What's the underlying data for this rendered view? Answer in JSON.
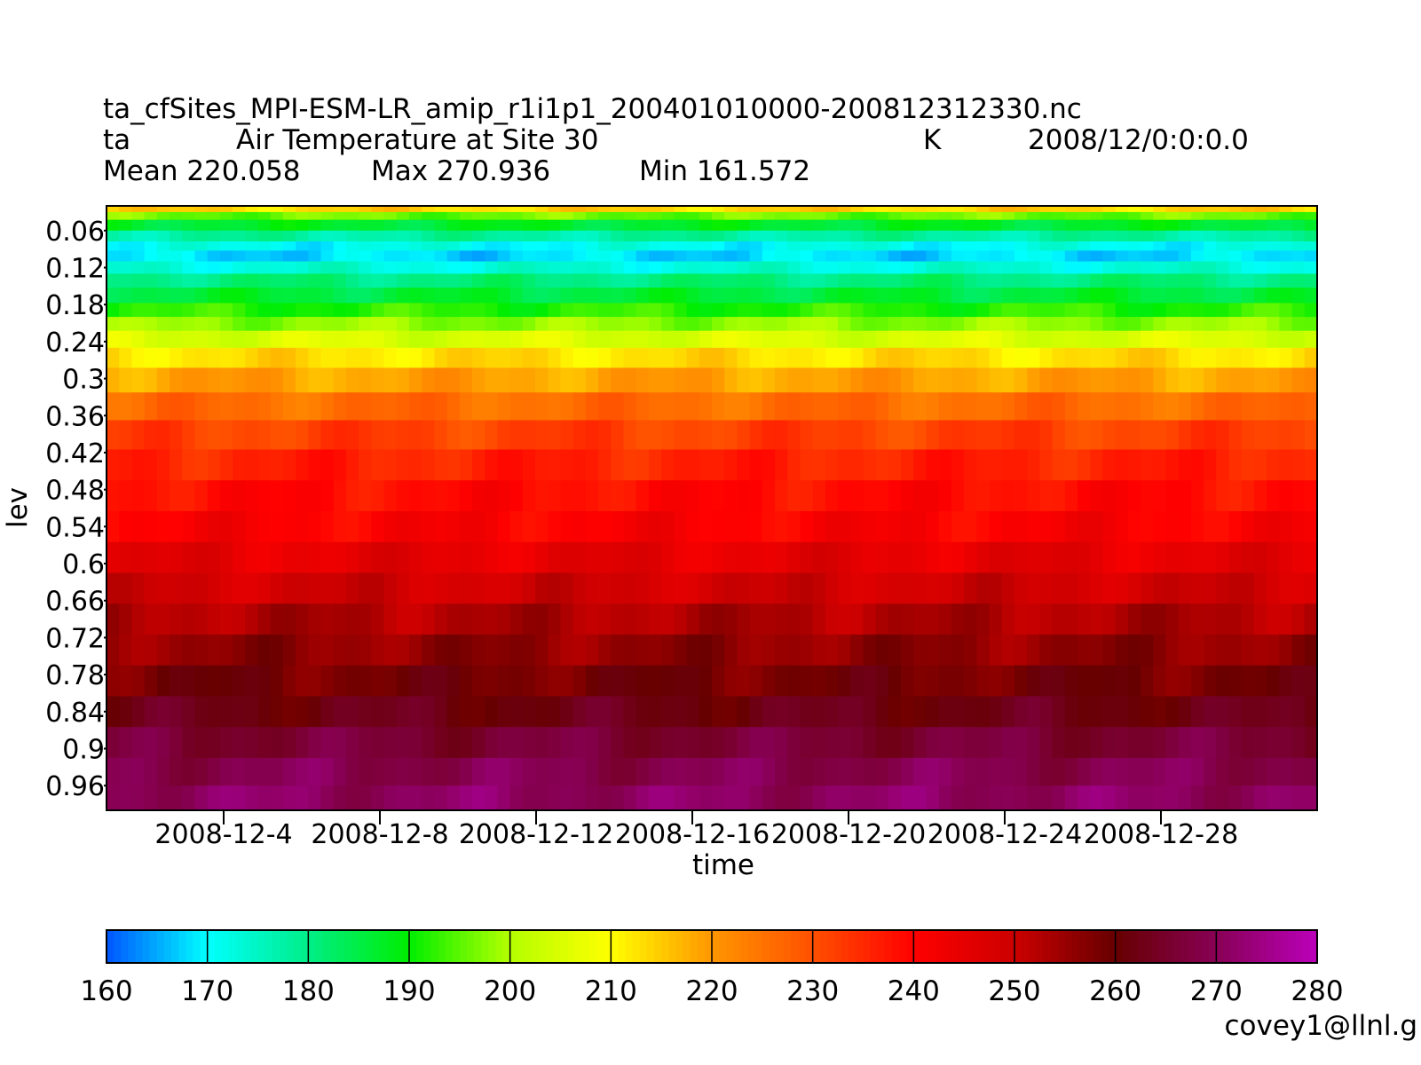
{
  "header": {
    "filename": "ta_cfSites_MPI-ESM-LR_amip_r1i1p1_200401010000-200812312330.nc",
    "var_name": "ta",
    "var_long_name": "Air Temperature at Site 30",
    "units": "K",
    "date": "2008/12/0:0:0.0",
    "mean_label": "Mean 220.058",
    "max_label": "Max 270.936",
    "min_label": "Min 161.572"
  },
  "footer": {
    "user": "covey1@llnl.g"
  },
  "chart_data": {
    "type": "heatmap",
    "xlabel": "time",
    "ylabel": "lev",
    "y_ticks": [
      "0.06",
      "0.12",
      "0.18",
      "0.24",
      "0.3",
      "0.36",
      "0.42",
      "0.48",
      "0.54",
      "0.6",
      "0.66",
      "0.72",
      "0.78",
      "0.84",
      "0.9",
      "0.96"
    ],
    "x_ticks": [
      "2008-12-4",
      "2008-12-8",
      "2008-12-12",
      "2008-12-16",
      "2008-12-20",
      "2008-12-24",
      "2008-12-28"
    ],
    "x_range_days": [
      1,
      32
    ],
    "y_range": [
      0.02,
      1.0
    ],
    "y_reversed": true,
    "level_profile": [
      {
        "lev": 0.025,
        "value": 214
      },
      {
        "lev": 0.035,
        "value": 196
      },
      {
        "lev": 0.05,
        "value": 187
      },
      {
        "lev": 0.07,
        "value": 178
      },
      {
        "lev": 0.085,
        "value": 171
      },
      {
        "lev": 0.1,
        "value": 168
      },
      {
        "lev": 0.12,
        "value": 173
      },
      {
        "lev": 0.14,
        "value": 181
      },
      {
        "lev": 0.165,
        "value": 186
      },
      {
        "lev": 0.19,
        "value": 192
      },
      {
        "lev": 0.21,
        "value": 198
      },
      {
        "lev": 0.235,
        "value": 205
      },
      {
        "lev": 0.265,
        "value": 213
      },
      {
        "lev": 0.3,
        "value": 219
      },
      {
        "lev": 0.345,
        "value": 226
      },
      {
        "lev": 0.39,
        "value": 232
      },
      {
        "lev": 0.44,
        "value": 236
      },
      {
        "lev": 0.49,
        "value": 239
      },
      {
        "lev": 0.54,
        "value": 241
      },
      {
        "lev": 0.59,
        "value": 245
      },
      {
        "lev": 0.64,
        "value": 249
      },
      {
        "lev": 0.69,
        "value": 253
      },
      {
        "lev": 0.74,
        "value": 256
      },
      {
        "lev": 0.79,
        "value": 259
      },
      {
        "lev": 0.84,
        "value": 262
      },
      {
        "lev": 0.89,
        "value": 266
      },
      {
        "lev": 0.94,
        "value": 269
      },
      {
        "lev": 0.98,
        "value": 271
      }
    ],
    "colorbar": {
      "levels": [
        160,
        170,
        180,
        190,
        200,
        210,
        220,
        230,
        240,
        250,
        260,
        270,
        280
      ],
      "labels": [
        "160",
        "170",
        "180",
        "190",
        "200",
        "210",
        "220",
        "230",
        "240",
        "250",
        "260",
        "270",
        "280"
      ],
      "color_stops": [
        {
          "value": 160,
          "color": "#0055ff"
        },
        {
          "value": 170,
          "color": "#00ffff"
        },
        {
          "value": 180,
          "color": "#00ee88"
        },
        {
          "value": 190,
          "color": "#00ee00"
        },
        {
          "value": 200,
          "color": "#b4ff00"
        },
        {
          "value": 210,
          "color": "#ffff00"
        },
        {
          "value": 220,
          "color": "#ff9600"
        },
        {
          "value": 230,
          "color": "#ff5000"
        },
        {
          "value": 240,
          "color": "#ff0000"
        },
        {
          "value": 250,
          "color": "#cc0000"
        },
        {
          "value": 260,
          "color": "#660000"
        },
        {
          "value": 270,
          "color": "#880055"
        },
        {
          "value": 280,
          "color": "#bb00bb"
        }
      ]
    }
  }
}
